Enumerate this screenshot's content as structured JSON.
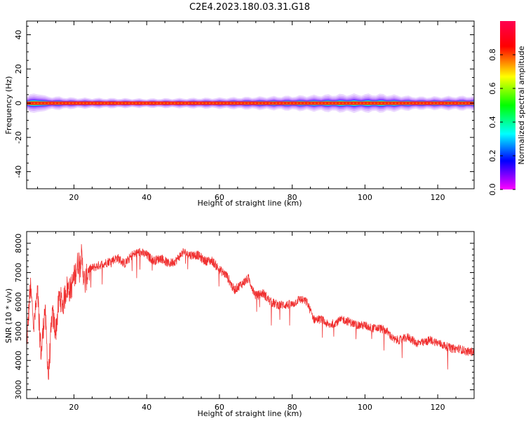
{
  "figure_title": "C2E4.2023.180.03.31.G18",
  "chart_data": [
    {
      "type": "heatmap",
      "title": "",
      "xlabel": "Height of straight line (km)",
      "ylabel": "Frequency (Hz)",
      "xlim": [
        7,
        130
      ],
      "ylim": [
        -50,
        48
      ],
      "xticks": [
        20,
        40,
        60,
        80,
        100,
        120
      ],
      "yticks": [
        -40,
        -20,
        0,
        20,
        40
      ],
      "colorbar": {
        "label": "Normalized spectral amplitude",
        "range": [
          0,
          1
        ],
        "ticks": [
          "0.0",
          "0.2",
          "0.4",
          "0.6",
          "0.8"
        ],
        "colormap": "gist_rainbow_r",
        "colors": [
          "#ff00ff",
          "#0000ff",
          "#00ffff",
          "#00ff00",
          "#ffff00",
          "#ff0000",
          "#ff0050"
        ]
      },
      "band": {
        "center_hz": 0,
        "core_halfwidth_hz": 1.0,
        "spread_profile": [
          {
            "x": 7,
            "halfwidth_hz": 4
          },
          {
            "x": 10,
            "halfwidth_hz": 6
          },
          {
            "x": 12,
            "halfwidth_hz": 4
          },
          {
            "x": 20,
            "halfwidth_hz": 3
          },
          {
            "x": 40,
            "halfwidth_hz": 2.5
          },
          {
            "x": 60,
            "halfwidth_hz": 3
          },
          {
            "x": 80,
            "halfwidth_hz": 4
          },
          {
            "x": 95,
            "halfwidth_hz": 5
          },
          {
            "x": 105,
            "halfwidth_hz": 5
          },
          {
            "x": 115,
            "halfwidth_hz": 3.5
          },
          {
            "x": 130,
            "halfwidth_hz": 4
          }
        ]
      }
    },
    {
      "type": "line",
      "title": "",
      "xlabel": "Height of straight line (km)",
      "ylabel": "SNR (10 * v/v)",
      "xlim": [
        7,
        130
      ],
      "ylim": [
        2700,
        8400
      ],
      "xticks": [
        20,
        40,
        60,
        80,
        100,
        120
      ],
      "yticks": [
        3000,
        4000,
        5000,
        6000,
        7000,
        8000
      ],
      "color": "#f03030",
      "series": [
        {
          "x": [
            7,
            8,
            9,
            10,
            11,
            12,
            13,
            14,
            15,
            16,
            17,
            18,
            19,
            20,
            21,
            22,
            23,
            24,
            26,
            28,
            30,
            32,
            34,
            36,
            38,
            40,
            42,
            44,
            46,
            48,
            50,
            52,
            54,
            56,
            58,
            60,
            62,
            64,
            66,
            68,
            70,
            72,
            74,
            76,
            78,
            80,
            82,
            84,
            86,
            88,
            90,
            92,
            94,
            96,
            98,
            100,
            102,
            104,
            106,
            108,
            110,
            112,
            114,
            116,
            118,
            120,
            122,
            124,
            126,
            128,
            130
          ],
          "values": [
            4500,
            6500,
            5200,
            6300,
            4200,
            5800,
            3400,
            5600,
            5000,
            6200,
            5900,
            6500,
            6400,
            6800,
            7300,
            7600,
            6600,
            7100,
            7200,
            7300,
            7400,
            7500,
            7300,
            7600,
            7700,
            7600,
            7400,
            7500,
            7300,
            7400,
            7700,
            7600,
            7600,
            7400,
            7400,
            7100,
            6900,
            6400,
            6600,
            6800,
            6200,
            6300,
            6000,
            5900,
            5900,
            5900,
            6100,
            6000,
            5400,
            5400,
            5200,
            5300,
            5400,
            5300,
            5200,
            5200,
            5100,
            5100,
            5000,
            4700,
            4700,
            4800,
            4600,
            4600,
            4700,
            4600,
            4500,
            4400,
            4400,
            4300,
            4300
          ]
        }
      ]
    }
  ]
}
